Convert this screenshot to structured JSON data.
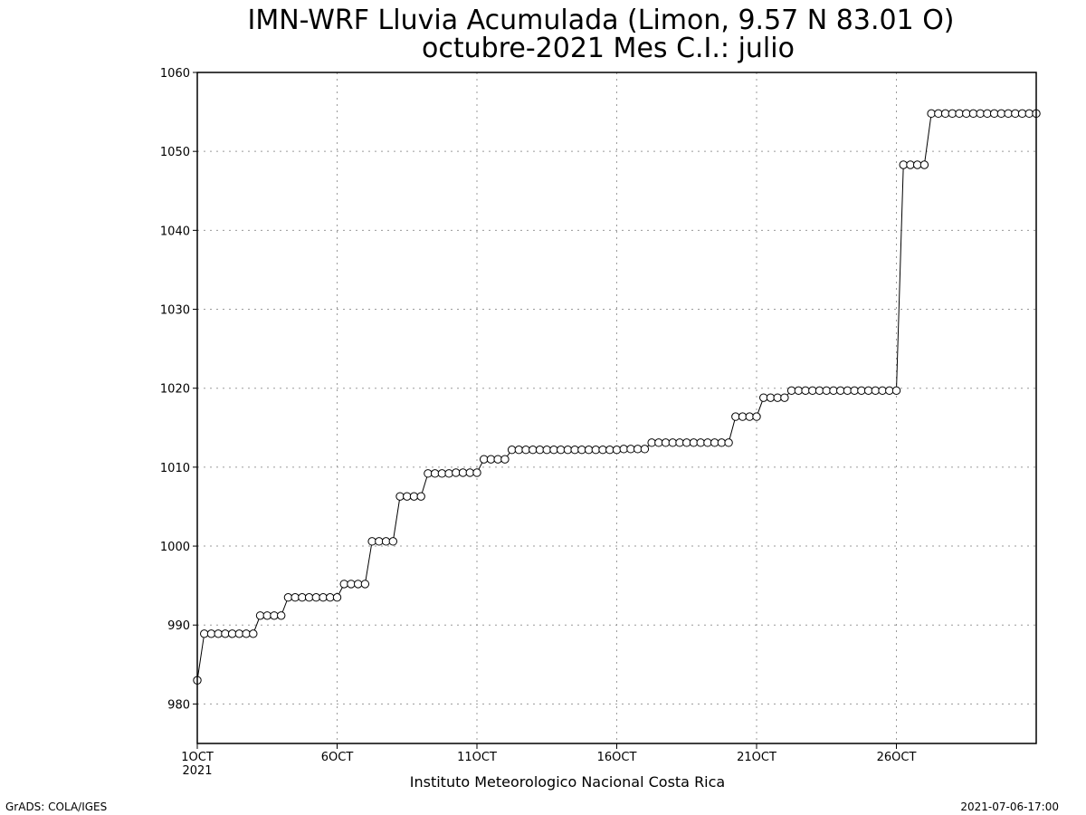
{
  "chart_data": {
    "type": "line",
    "title": "IMN-WRF  Lluvia Acumulada  (Limon, 9.57  N 83.01  O)",
    "subtitle": "octubre-2021 Mes C.I.: julio",
    "xlabel": "Instituto Meteorologico Nacional Costa Rica",
    "ylabel": "",
    "ylim": [
      975,
      1060
    ],
    "yticks": [
      "980",
      "990",
      "1000",
      "1010",
      "1020",
      "1030",
      "1040",
      "1050",
      "1060"
    ],
    "xlim": [
      0,
      120
    ],
    "xticks": [
      {
        "x": 0,
        "label": "1OCT",
        "sublabel": "2021"
      },
      {
        "x": 20,
        "label": "6OCT",
        "sublabel": ""
      },
      {
        "x": 40,
        "label": "11OCT",
        "sublabel": ""
      },
      {
        "x": 60,
        "label": "16OCT",
        "sublabel": ""
      },
      {
        "x": 80,
        "label": "21OCT",
        "sublabel": ""
      },
      {
        "x": 100,
        "label": "26OCT",
        "sublabel": ""
      }
    ],
    "grid": true,
    "marker": "open-circle",
    "color": "#000000",
    "series": [
      {
        "x": [
          0,
          1,
          2,
          3,
          4,
          5,
          6,
          7,
          8,
          9,
          10,
          11,
          12,
          13,
          14,
          15,
          16,
          17,
          18,
          19,
          20,
          21,
          22,
          23,
          24,
          25,
          26,
          27,
          28,
          29,
          30,
          31,
          32,
          33,
          34,
          35,
          36,
          37,
          38,
          39,
          40,
          41,
          42,
          43,
          44,
          45,
          46,
          47,
          48,
          49,
          50,
          51,
          52,
          53,
          54,
          55,
          56,
          57,
          58,
          59,
          60,
          61,
          62,
          63,
          64,
          65,
          66,
          67,
          68,
          69,
          70,
          71,
          72,
          73,
          74,
          75,
          76,
          77,
          78,
          79,
          80,
          81,
          82,
          83,
          84,
          85,
          86,
          87,
          88,
          89,
          90,
          91,
          92,
          93,
          94,
          95,
          96,
          97,
          98,
          99,
          100,
          101,
          102,
          103,
          104,
          105,
          106,
          107,
          108,
          109,
          110,
          111,
          112,
          113,
          114,
          115,
          116,
          117,
          118,
          119,
          120
        ],
        "values": [
          983.0,
          988.9,
          988.9,
          988.9,
          988.9,
          988.9,
          988.9,
          988.9,
          988.9,
          991.2,
          991.2,
          991.2,
          991.2,
          993.5,
          993.5,
          993.5,
          993.5,
          993.5,
          993.5,
          993.5,
          993.5,
          995.2,
          995.2,
          995.2,
          995.2,
          1000.6,
          1000.6,
          1000.6,
          1000.6,
          1006.3,
          1006.3,
          1006.3,
          1006.3,
          1009.2,
          1009.2,
          1009.2,
          1009.2,
          1009.3,
          1009.3,
          1009.3,
          1009.3,
          1011.0,
          1011.0,
          1011.0,
          1011.0,
          1012.2,
          1012.2,
          1012.2,
          1012.2,
          1012.2,
          1012.2,
          1012.2,
          1012.2,
          1012.2,
          1012.2,
          1012.2,
          1012.2,
          1012.2,
          1012.2,
          1012.2,
          1012.2,
          1012.3,
          1012.3,
          1012.3,
          1012.3,
          1013.1,
          1013.1,
          1013.1,
          1013.1,
          1013.1,
          1013.1,
          1013.1,
          1013.1,
          1013.1,
          1013.1,
          1013.1,
          1013.1,
          1016.4,
          1016.4,
          1016.4,
          1016.4,
          1018.8,
          1018.8,
          1018.8,
          1018.8,
          1019.7,
          1019.7,
          1019.7,
          1019.7,
          1019.7,
          1019.7,
          1019.7,
          1019.7,
          1019.7,
          1019.7,
          1019.7,
          1019.7,
          1019.7,
          1019.7,
          1019.7,
          1019.7,
          1048.3,
          1048.3,
          1048.3,
          1048.3,
          1054.8,
          1054.8,
          1054.8,
          1054.8,
          1054.8,
          1054.8,
          1054.8,
          1054.8,
          1054.8,
          1054.8,
          1054.8,
          1054.8,
          1054.8,
          1054.8,
          1054.8,
          1054.8
        ]
      }
    ]
  },
  "footer": {
    "left": "GrADS: COLA/IGES",
    "right": "2021-07-06-17:00"
  }
}
